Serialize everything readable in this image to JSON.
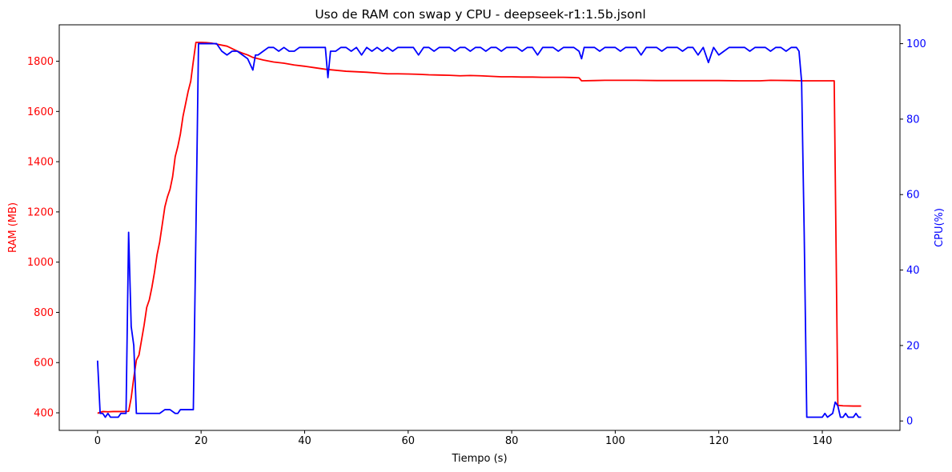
{
  "chart_data": {
    "type": "line",
    "title": "Uso de RAM con swap y CPU - deepseek-r1:1.5b.jsonl",
    "xlabel": "Tiempo (s)",
    "ylabel_left": "RAM (MB)",
    "ylabel_right": "CPU(%)",
    "xlim": [
      -7.4,
      155
    ],
    "ylim_left": [
      330,
      1945
    ],
    "ylim_right": [
      -2.5,
      105
    ],
    "x_ticks": [
      0,
      20,
      40,
      60,
      80,
      100,
      120,
      140
    ],
    "y_left_ticks": [
      400,
      600,
      800,
      1000,
      1200,
      1400,
      1600,
      1800
    ],
    "y_right_ticks": [
      0,
      20,
      40,
      60,
      80,
      100
    ],
    "grid": false,
    "colors": {
      "ram": "#ff0000",
      "cpu": "#0000ff",
      "axis": "#000000"
    },
    "series": [
      {
        "axis": "left",
        "color": "#ff0000",
        "points": [
          [
            0,
            398
          ],
          [
            0.5,
            402
          ],
          [
            1,
            405
          ],
          [
            2,
            404
          ],
          [
            3,
            405
          ],
          [
            4,
            405
          ],
          [
            5,
            405
          ],
          [
            6,
            406
          ],
          [
            6.5,
            460
          ],
          [
            7,
            540
          ],
          [
            7.5,
            610
          ],
          [
            8,
            630
          ],
          [
            8.5,
            690
          ],
          [
            9,
            750
          ],
          [
            9.5,
            820
          ],
          [
            10,
            850
          ],
          [
            10.5,
            900
          ],
          [
            11,
            960
          ],
          [
            11.5,
            1030
          ],
          [
            12,
            1080
          ],
          [
            12.5,
            1150
          ],
          [
            13,
            1220
          ],
          [
            13.5,
            1260
          ],
          [
            14,
            1290
          ],
          [
            14.5,
            1340
          ],
          [
            15,
            1420
          ],
          [
            15.5,
            1460
          ],
          [
            16,
            1510
          ],
          [
            16.5,
            1580
          ],
          [
            17,
            1630
          ],
          [
            17.5,
            1680
          ],
          [
            18,
            1720
          ],
          [
            18.5,
            1800
          ],
          [
            19,
            1875
          ],
          [
            20,
            1875
          ],
          [
            21,
            1874
          ],
          [
            22,
            1872
          ],
          [
            23,
            1868
          ],
          [
            24,
            1864
          ],
          [
            25,
            1860
          ],
          [
            26,
            1850
          ],
          [
            27,
            1840
          ],
          [
            28,
            1832
          ],
          [
            29,
            1825
          ],
          [
            30,
            1815
          ],
          [
            32,
            1805
          ],
          [
            34,
            1797
          ],
          [
            36,
            1792
          ],
          [
            38,
            1785
          ],
          [
            40,
            1780
          ],
          [
            42,
            1774
          ],
          [
            44,
            1768
          ],
          [
            46,
            1764
          ],
          [
            48,
            1760
          ],
          [
            50,
            1758
          ],
          [
            52,
            1756
          ],
          [
            54,
            1753
          ],
          [
            56,
            1750
          ],
          [
            58,
            1750
          ],
          [
            60,
            1749
          ],
          [
            62,
            1748
          ],
          [
            64,
            1746
          ],
          [
            66,
            1745
          ],
          [
            68,
            1744
          ],
          [
            70,
            1742
          ],
          [
            72,
            1743
          ],
          [
            74,
            1742
          ],
          [
            76,
            1740
          ],
          [
            78,
            1738
          ],
          [
            80,
            1738
          ],
          [
            82,
            1737
          ],
          [
            84,
            1737
          ],
          [
            86,
            1736
          ],
          [
            88,
            1736
          ],
          [
            90,
            1736
          ],
          [
            92,
            1735
          ],
          [
            93,
            1734
          ],
          [
            93.5,
            1722
          ],
          [
            96,
            1723
          ],
          [
            98,
            1724
          ],
          [
            100,
            1724
          ],
          [
            104,
            1724
          ],
          [
            108,
            1723
          ],
          [
            112,
            1723
          ],
          [
            116,
            1723
          ],
          [
            120,
            1723
          ],
          [
            124,
            1722
          ],
          [
            128,
            1722
          ],
          [
            130,
            1724
          ],
          [
            134,
            1723
          ],
          [
            136,
            1722
          ],
          [
            140,
            1722
          ],
          [
            142.3,
            1722
          ],
          [
            143,
            430
          ],
          [
            144,
            428
          ],
          [
            146,
            427
          ],
          [
            147.5,
            427
          ]
        ]
      },
      {
        "axis": "right",
        "color": "#0000ff",
        "points": [
          [
            0,
            16
          ],
          [
            0.5,
            2
          ],
          [
            1,
            2
          ],
          [
            1.5,
            1
          ],
          [
            2,
            2
          ],
          [
            2.5,
            1
          ],
          [
            3,
            1
          ],
          [
            4,
            1
          ],
          [
            4.5,
            2
          ],
          [
            5,
            2
          ],
          [
            5.5,
            2
          ],
          [
            6,
            50
          ],
          [
            6.5,
            25
          ],
          [
            7,
            20
          ],
          [
            7.5,
            2
          ],
          [
            8,
            2
          ],
          [
            8.5,
            2
          ],
          [
            9,
            2
          ],
          [
            10,
            2
          ],
          [
            11,
            2
          ],
          [
            12,
            2
          ],
          [
            13,
            3
          ],
          [
            14,
            3
          ],
          [
            15,
            2
          ],
          [
            15.5,
            2
          ],
          [
            16,
            3
          ],
          [
            17,
            3
          ],
          [
            18,
            3
          ],
          [
            18.5,
            3
          ],
          [
            19,
            50
          ],
          [
            19.5,
            100
          ],
          [
            20,
            100
          ],
          [
            21,
            100
          ],
          [
            22,
            100
          ],
          [
            23,
            100
          ],
          [
            24,
            98
          ],
          [
            25,
            97
          ],
          [
            26,
            98
          ],
          [
            27,
            98
          ],
          [
            28,
            97
          ],
          [
            29,
            96
          ],
          [
            30,
            93
          ],
          [
            30.5,
            97
          ],
          [
            31,
            97
          ],
          [
            32,
            98
          ],
          [
            33,
            99
          ],
          [
            34,
            99
          ],
          [
            35,
            98
          ],
          [
            36,
            99
          ],
          [
            37,
            98
          ],
          [
            38,
            98
          ],
          [
            39,
            99
          ],
          [
            40,
            99
          ],
          [
            41,
            99
          ],
          [
            42,
            99
          ],
          [
            43,
            99
          ],
          [
            44,
            99
          ],
          [
            44.5,
            91
          ],
          [
            45,
            98
          ],
          [
            46,
            98
          ],
          [
            47,
            99
          ],
          [
            48,
            99
          ],
          [
            49,
            98
          ],
          [
            50,
            99
          ],
          [
            51,
            97
          ],
          [
            52,
            99
          ],
          [
            53,
            98
          ],
          [
            54,
            99
          ],
          [
            55,
            98
          ],
          [
            56,
            99
          ],
          [
            57,
            98
          ],
          [
            58,
            99
          ],
          [
            59,
            99
          ],
          [
            60,
            99
          ],
          [
            61,
            99
          ],
          [
            62,
            97
          ],
          [
            63,
            99
          ],
          [
            64,
            99
          ],
          [
            65,
            98
          ],
          [
            66,
            99
          ],
          [
            67,
            99
          ],
          [
            68,
            99
          ],
          [
            69,
            98
          ],
          [
            70,
            99
          ],
          [
            71,
            99
          ],
          [
            72,
            98
          ],
          [
            73,
            99
          ],
          [
            74,
            99
          ],
          [
            75,
            98
          ],
          [
            76,
            99
          ],
          [
            77,
            99
          ],
          [
            78,
            98
          ],
          [
            79,
            99
          ],
          [
            80,
            99
          ],
          [
            81,
            99
          ],
          [
            82,
            98
          ],
          [
            83,
            99
          ],
          [
            84,
            99
          ],
          [
            85,
            97
          ],
          [
            86,
            99
          ],
          [
            87,
            99
          ],
          [
            88,
            99
          ],
          [
            89,
            98
          ],
          [
            90,
            99
          ],
          [
            91,
            99
          ],
          [
            92,
            99
          ],
          [
            93,
            98
          ],
          [
            93.5,
            96
          ],
          [
            94,
            99
          ],
          [
            95,
            99
          ],
          [
            96,
            99
          ],
          [
            97,
            98
          ],
          [
            98,
            99
          ],
          [
            99,
            99
          ],
          [
            100,
            99
          ],
          [
            101,
            98
          ],
          [
            102,
            99
          ],
          [
            103,
            99
          ],
          [
            104,
            99
          ],
          [
            105,
            97
          ],
          [
            106,
            99
          ],
          [
            107,
            99
          ],
          [
            108,
            99
          ],
          [
            109,
            98
          ],
          [
            110,
            99
          ],
          [
            111,
            99
          ],
          [
            112,
            99
          ],
          [
            113,
            98
          ],
          [
            114,
            99
          ],
          [
            115,
            99
          ],
          [
            116,
            97
          ],
          [
            117,
            99
          ],
          [
            118,
            95
          ],
          [
            119,
            99
          ],
          [
            120,
            97
          ],
          [
            121,
            98
          ],
          [
            122,
            99
          ],
          [
            123,
            99
          ],
          [
            124,
            99
          ],
          [
            125,
            99
          ],
          [
            126,
            98
          ],
          [
            127,
            99
          ],
          [
            128,
            99
          ],
          [
            129,
            99
          ],
          [
            130,
            98
          ],
          [
            131,
            99
          ],
          [
            132,
            99
          ],
          [
            133,
            98
          ],
          [
            134,
            99
          ],
          [
            135,
            99
          ],
          [
            135.5,
            98
          ],
          [
            136,
            90
          ],
          [
            136.5,
            50
          ],
          [
            137,
            1
          ],
          [
            138,
            1
          ],
          [
            139,
            1
          ],
          [
            140,
            1
          ],
          [
            140.5,
            2
          ],
          [
            141,
            1
          ],
          [
            142,
            2
          ],
          [
            142.5,
            5
          ],
          [
            143,
            4
          ],
          [
            143.5,
            1
          ],
          [
            144,
            1
          ],
          [
            144.5,
            2
          ],
          [
            145,
            1
          ],
          [
            145.5,
            1
          ],
          [
            146,
            1
          ],
          [
            146.5,
            2
          ],
          [
            147,
            1
          ],
          [
            147.5,
            1
          ]
        ]
      }
    ]
  }
}
